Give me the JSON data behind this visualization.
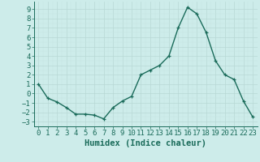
{
  "x": [
    0,
    1,
    2,
    3,
    4,
    5,
    6,
    7,
    8,
    9,
    10,
    11,
    12,
    13,
    14,
    15,
    16,
    17,
    18,
    19,
    20,
    21,
    22,
    23
  ],
  "y": [
    1.0,
    -0.5,
    -0.9,
    -1.5,
    -2.2,
    -2.2,
    -2.3,
    -2.7,
    -1.5,
    -0.8,
    -0.3,
    2.0,
    2.5,
    3.0,
    4.0,
    7.0,
    9.2,
    8.5,
    6.5,
    3.5,
    2.0,
    1.5,
    -0.8,
    -2.5
  ],
  "xlabel": "Humidex (Indice chaleur)",
  "ylim": [
    -3.5,
    9.8
  ],
  "xlim": [
    -0.5,
    23.5
  ],
  "line_color": "#1a6b5a",
  "bg_color": "#cdecea",
  "grid_major_color": "#b8d8d5",
  "grid_minor_color": "#c8e4e2",
  "xlabel_fontsize": 7.5,
  "tick_fontsize": 6.5,
  "yticks": [
    -3,
    -2,
    -1,
    0,
    1,
    2,
    3,
    4,
    5,
    6,
    7,
    8,
    9
  ],
  "xticks": [
    0,
    1,
    2,
    3,
    4,
    5,
    6,
    7,
    8,
    9,
    10,
    11,
    12,
    13,
    14,
    15,
    16,
    17,
    18,
    19,
    20,
    21,
    22,
    23
  ]
}
